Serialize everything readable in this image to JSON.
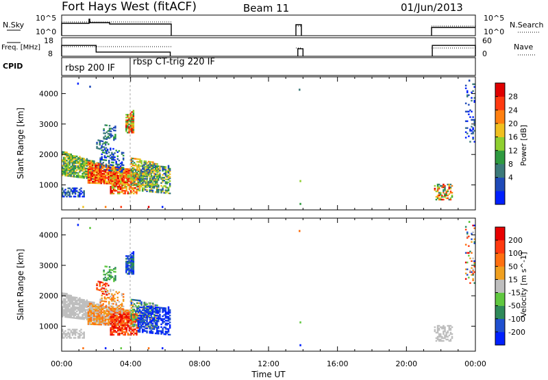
{
  "header": {
    "title": "Fort Hays West (fitACF)",
    "beam": "Beam 11",
    "date": "01/Jun/2013"
  },
  "chart_data": [
    {
      "type": "line",
      "panel": "noise",
      "ylabel_left": "N.Sky",
      "ylabel_right": "N.Search",
      "y_ticks_left": [
        "10^5",
        "10^0"
      ],
      "y_ticks_right": [
        "10^5",
        "10^0"
      ],
      "x": [
        0,
        1.5,
        2,
        6.3,
        13.7,
        14,
        21.5,
        24
      ],
      "note_series": "step profile of sky noise, data gaps 06:20-13:40, 14:00-21:30"
    },
    {
      "type": "line",
      "panel": "frequency",
      "ylabel_left": "Freq. [MHz]",
      "ylabel_right": "Nave",
      "y_ticks_left": [
        "18",
        "8"
      ],
      "y_ticks_right": [
        "60",
        "0"
      ],
      "segments": [
        {
          "start": 0.0,
          "end": 2.0,
          "freq": 14.5
        },
        {
          "start": 2.0,
          "end": 6.3,
          "freq": 10.5
        },
        {
          "start": 13.7,
          "end": 14.0,
          "freq": 12.5
        },
        {
          "start": 21.5,
          "end": 24.0,
          "freq": 14.5
        }
      ]
    },
    {
      "type": "table",
      "panel": "cpid",
      "label": "CPID",
      "entries": [
        {
          "start": 0.0,
          "text": "rbsp 200 IF"
        },
        {
          "start": 4.0,
          "text": "rbsp CT-trig 220 IF"
        }
      ]
    },
    {
      "type": "heatmap",
      "panel": "power",
      "ylabel": "Slant Range [km]",
      "xlabel": "",
      "yticks": [
        1000,
        2000,
        3000,
        4000
      ],
      "ylim": [
        180,
        4550
      ],
      "xlim": [
        0,
        24
      ],
      "colorbar": {
        "label": "Power [dB]",
        "ticks": [
          "28",
          "24",
          "20",
          "16",
          "12",
          "8",
          "4"
        ],
        "colors": [
          "#0020ff",
          "#1f4ab8",
          "#3c7a7a",
          "#2f9a40",
          "#8fcf30",
          "#f0c020",
          "#ff8010",
          "#ff3a10",
          "#e00000"
        ]
      }
    },
    {
      "type": "heatmap",
      "panel": "velocity",
      "ylabel": "Slant Range [km]",
      "xlabel": "Time UT",
      "yticks": [
        1000,
        2000,
        3000,
        4000
      ],
      "ylim": [
        180,
        4550
      ],
      "xlim": [
        0,
        24
      ],
      "xtick_labels": [
        "00:00",
        "04:00",
        "08:00",
        "12:00",
        "16:00",
        "20:00",
        "00:00"
      ],
      "colorbar": {
        "label": "Velocity [m s^-1]",
        "ticks": [
          "200",
          "100",
          "50",
          "15",
          "-15",
          "-50",
          "-100",
          "-200"
        ],
        "colors": [
          "#0020ff",
          "#2050d0",
          "#2f8a5a",
          "#60c840",
          "#bebebe",
          "#f0a020",
          "#ff7010",
          "#ff3a10",
          "#e80000"
        ]
      }
    }
  ]
}
